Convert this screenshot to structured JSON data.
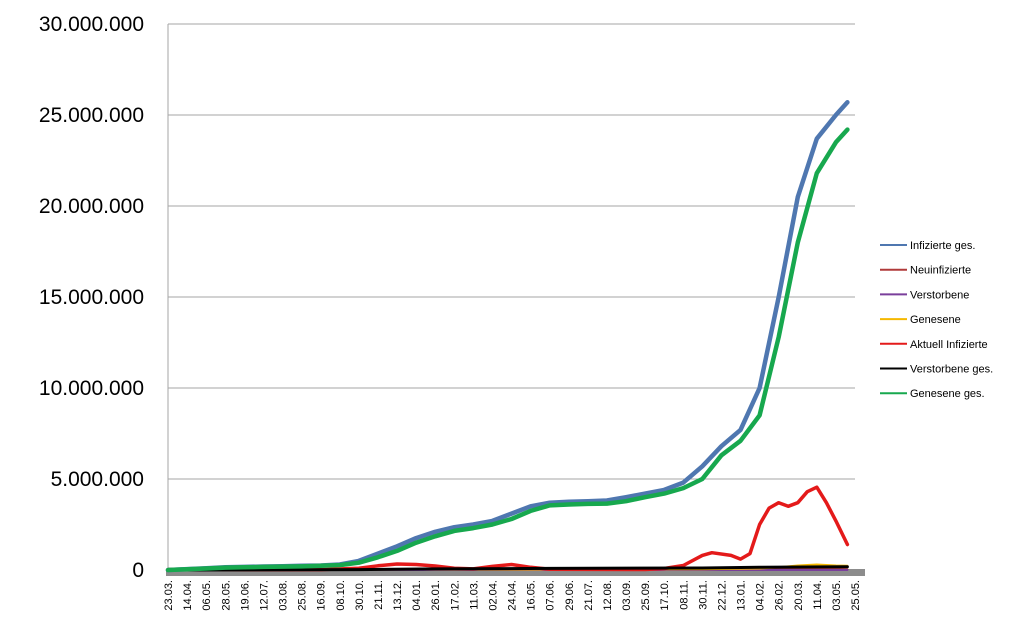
{
  "chart_data": {
    "type": "line",
    "title": "",
    "xlabel": "",
    "ylabel": "",
    "ylim": [
      0,
      30000000
    ],
    "y_ticks": [
      {
        "value": 0,
        "label": "0"
      },
      {
        "value": 5000000,
        "label": "5.000.000"
      },
      {
        "value": 10000000,
        "label": "10.000.000"
      },
      {
        "value": 15000000,
        "label": "15.000.000"
      },
      {
        "value": 20000000,
        "label": "20.000.000"
      },
      {
        "value": 25000000,
        "label": "25.000.000"
      },
      {
        "value": 30000000,
        "label": "30.000.000"
      }
    ],
    "grid": true,
    "legend_position": "right",
    "x_range": [
      0,
      36
    ],
    "categories": [
      "23.03.",
      "14.04.",
      "06.05.",
      "28.05.",
      "19.06.",
      "12.07.",
      "03.08.",
      "25.08.",
      "16.09.",
      "08.10.",
      "30.10.",
      "21.11.",
      "13.12.",
      "04.01.",
      "26.01.",
      "17.02.",
      "11.03.",
      "02.04.",
      "24.04.",
      "16.05.",
      "07.06.",
      "29.06.",
      "21.07.",
      "12.08.",
      "03.09.",
      "25.09.",
      "17.10.",
      "08.11.",
      "30.11.",
      "22.12.",
      "13.01.",
      "04.02.",
      "26.02.",
      "20.03.",
      "11.04.",
      "03.05.",
      "25.05."
    ],
    "series": [
      {
        "name": "Infizierte ges.",
        "color": "#4f77b0",
        "width": 4.5,
        "points": [
          [
            0,
            0
          ],
          [
            1,
            50000
          ],
          [
            2,
            100000
          ],
          [
            3,
            150000
          ],
          [
            4,
            170000
          ],
          [
            5,
            190000
          ],
          [
            6,
            210000
          ],
          [
            7,
            230000
          ],
          [
            8,
            250000
          ],
          [
            9,
            300000
          ],
          [
            10,
            500000
          ],
          [
            11,
            900000
          ],
          [
            12,
            1300000
          ],
          [
            13,
            1750000
          ],
          [
            14,
            2100000
          ],
          [
            15,
            2350000
          ],
          [
            16,
            2500000
          ],
          [
            17,
            2700000
          ],
          [
            18,
            3100000
          ],
          [
            19,
            3500000
          ],
          [
            20,
            3700000
          ],
          [
            21,
            3750000
          ],
          [
            22,
            3780000
          ],
          [
            23,
            3820000
          ],
          [
            24,
            4000000
          ],
          [
            25,
            4200000
          ],
          [
            26,
            4400000
          ],
          [
            27,
            4800000
          ],
          [
            28,
            5700000
          ],
          [
            29,
            6800000
          ],
          [
            30,
            7700000
          ],
          [
            31,
            10000000
          ],
          [
            32,
            15000000
          ],
          [
            33,
            20500000
          ],
          [
            34,
            23700000
          ],
          [
            35,
            25000000
          ],
          [
            35.6,
            25700000
          ]
        ]
      },
      {
        "name": "Neuinfizierte",
        "color": "#b03a3a",
        "width": 2,
        "points": [
          [
            0,
            5000
          ],
          [
            10,
            10000
          ],
          [
            13,
            25000
          ],
          [
            16,
            20000
          ],
          [
            18,
            15000
          ],
          [
            20,
            10000
          ],
          [
            28,
            40000
          ],
          [
            31,
            60000
          ],
          [
            33,
            90000
          ],
          [
            35,
            60000
          ],
          [
            35.6,
            40000
          ]
        ]
      },
      {
        "name": "Verstorbene",
        "color": "#7a3f9b",
        "width": 2,
        "points": [
          [
            0,
            0
          ],
          [
            35.6,
            2000
          ]
        ]
      },
      {
        "name": "Genesene",
        "color": "#f5b800",
        "width": 2,
        "points": [
          [
            0,
            5000
          ],
          [
            10,
            10000
          ],
          [
            13,
            25000
          ],
          [
            18,
            20000
          ],
          [
            28,
            40000
          ],
          [
            31,
            80000
          ],
          [
            32,
            150000
          ],
          [
            33,
            250000
          ],
          [
            34,
            300000
          ],
          [
            35,
            250000
          ],
          [
            35.6,
            230000
          ]
        ]
      },
      {
        "name": "Aktuell Infizierte",
        "color": "#e41a1a",
        "width": 3.5,
        "points": [
          [
            0,
            20000
          ],
          [
            2,
            40000
          ],
          [
            4,
            10000
          ],
          [
            8,
            20000
          ],
          [
            10,
            100000
          ],
          [
            11,
            230000
          ],
          [
            12,
            330000
          ],
          [
            13,
            300000
          ],
          [
            14,
            220000
          ],
          [
            15,
            100000
          ],
          [
            16,
            60000
          ],
          [
            17,
            200000
          ],
          [
            18,
            300000
          ],
          [
            19,
            150000
          ],
          [
            20,
            40000
          ],
          [
            25,
            30000
          ],
          [
            26,
            80000
          ],
          [
            27,
            250000
          ],
          [
            28,
            800000
          ],
          [
            28.5,
            950000
          ],
          [
            29.5,
            800000
          ],
          [
            30,
            600000
          ],
          [
            30.5,
            900000
          ],
          [
            31,
            2500000
          ],
          [
            31.5,
            3400000
          ],
          [
            32,
            3700000
          ],
          [
            32.5,
            3500000
          ],
          [
            33,
            3700000
          ],
          [
            33.5,
            4300000
          ],
          [
            34,
            4550000
          ],
          [
            34.5,
            3700000
          ],
          [
            35,
            2700000
          ],
          [
            35.6,
            1400000
          ]
        ]
      },
      {
        "name": "Verstorbene ges.",
        "color": "#000000",
        "width": 3,
        "points": [
          [
            0,
            0
          ],
          [
            10,
            20000
          ],
          [
            14,
            60000
          ],
          [
            20,
            90000
          ],
          [
            28,
            110000
          ],
          [
            31,
            150000
          ],
          [
            35.6,
            180000
          ]
        ]
      },
      {
        "name": "Genesene ges.",
        "color": "#17a84e",
        "width": 4.5,
        "points": [
          [
            0,
            0
          ],
          [
            1,
            40000
          ],
          [
            2,
            80000
          ],
          [
            3,
            130000
          ],
          [
            4,
            150000
          ],
          [
            5,
            170000
          ],
          [
            6,
            185000
          ],
          [
            7,
            200000
          ],
          [
            8,
            230000
          ],
          [
            9,
            270000
          ],
          [
            10,
            400000
          ],
          [
            11,
            700000
          ],
          [
            12,
            1050000
          ],
          [
            13,
            1500000
          ],
          [
            14,
            1850000
          ],
          [
            15,
            2150000
          ],
          [
            16,
            2300000
          ],
          [
            17,
            2500000
          ],
          [
            18,
            2800000
          ],
          [
            19,
            3250000
          ],
          [
            20,
            3550000
          ],
          [
            21,
            3600000
          ],
          [
            22,
            3630000
          ],
          [
            23,
            3650000
          ],
          [
            24,
            3780000
          ],
          [
            25,
            4000000
          ],
          [
            26,
            4200000
          ],
          [
            27,
            4500000
          ],
          [
            28,
            5000000
          ],
          [
            29,
            6300000
          ],
          [
            30,
            7100000
          ],
          [
            31,
            8500000
          ],
          [
            32,
            12800000
          ],
          [
            33,
            18000000
          ],
          [
            34,
            21800000
          ],
          [
            35,
            23500000
          ],
          [
            35.6,
            24200000
          ]
        ]
      }
    ]
  }
}
